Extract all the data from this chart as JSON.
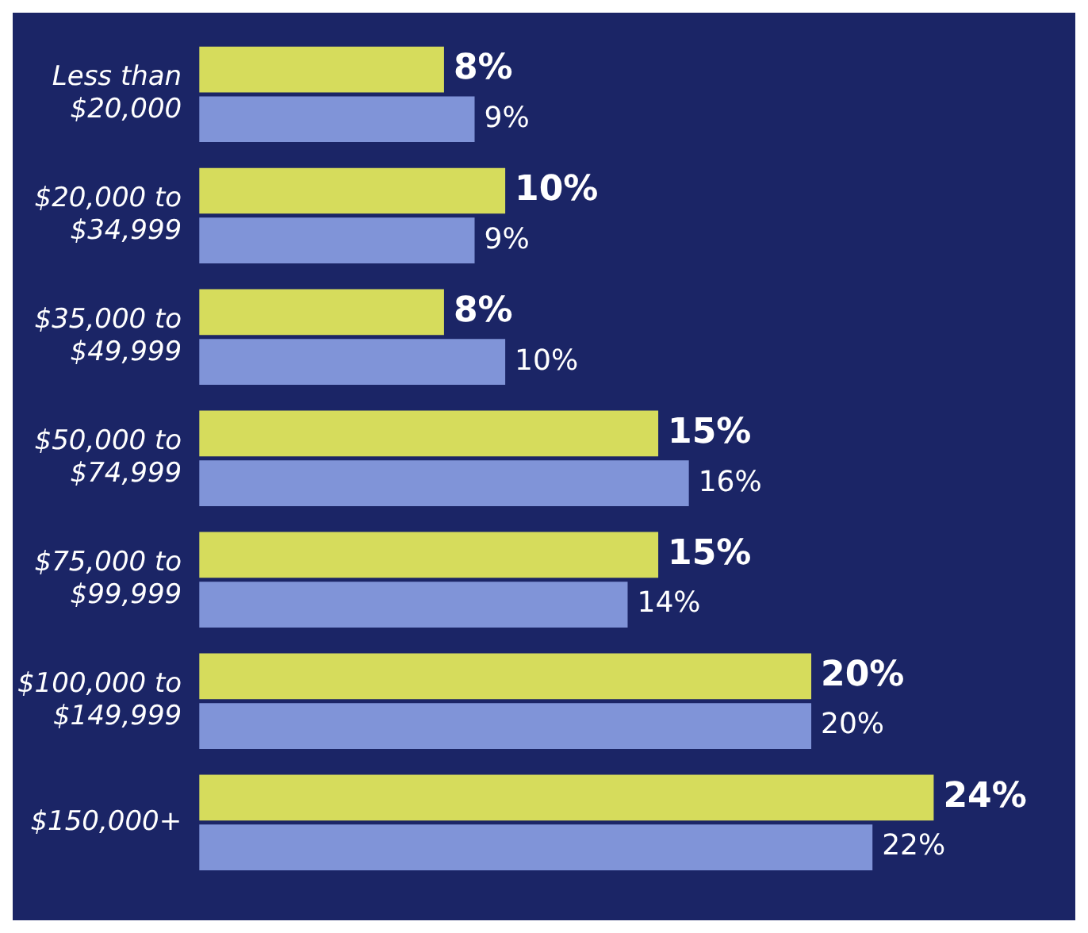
{
  "chart_data": {
    "type": "bar",
    "orientation": "horizontal",
    "categories": [
      "Less than $20,000",
      "$20,000 to $34,999",
      "$35,000 to $49,999",
      "$50,000 to $74,999",
      "$75,000 to $99,999",
      "$100,000 to $149,999",
      "$150,000+"
    ],
    "series": [
      {
        "color": "#d6dc5c",
        "values": [
          8,
          10,
          8,
          15,
          15,
          20,
          24
        ],
        "value_labels": [
          "8%",
          "10%",
          "8%",
          "15%",
          "15%",
          "20%",
          "24%"
        ]
      },
      {
        "color": "#8094d8",
        "values": [
          9,
          9,
          10,
          16,
          14,
          20,
          22
        ],
        "value_labels": [
          "9%",
          "9%",
          "10%",
          "16%",
          "14%",
          "20%",
          "22%"
        ]
      }
    ],
    "grid": false,
    "legend": false,
    "tick_labels": "y"
  }
}
